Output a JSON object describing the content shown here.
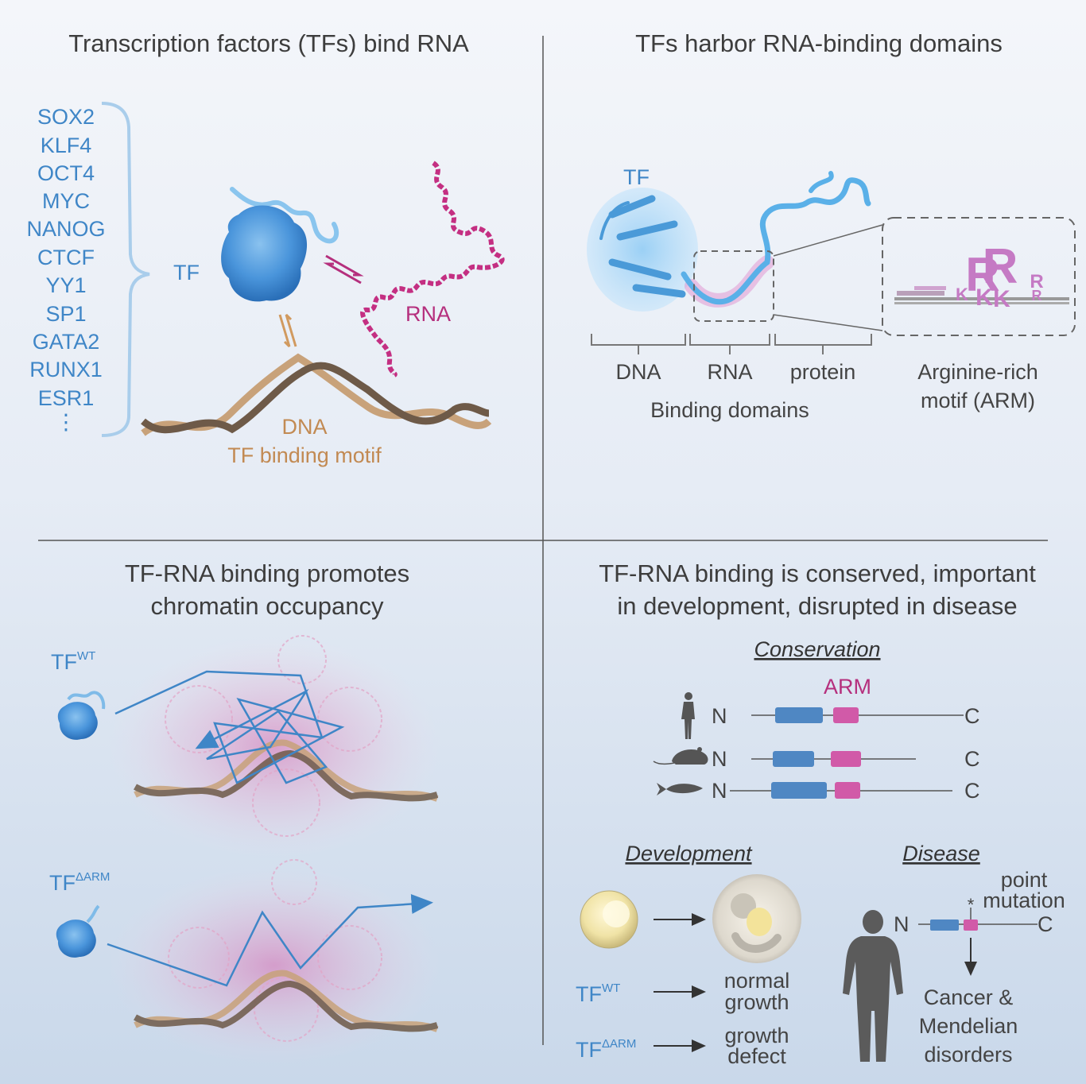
{
  "panels": {
    "top_left": {
      "title": "Transcription factors (TFs) bind RNA",
      "tf_list": [
        "SOX2",
        "KLF4",
        "OCT4",
        "MYC",
        "NANOG",
        "CTCF",
        "YY1",
        "SP1",
        "GATA2",
        "RUNX1",
        "ESR1",
        "⋮"
      ],
      "tf_label": "TF",
      "rna_label": "RNA",
      "dna_label": "DNA",
      "motif_label": "TF binding motif"
    },
    "top_right": {
      "title": "TFs harbor RNA-binding domains",
      "tf_label": "TF",
      "domains": [
        "DNA",
        "RNA",
        "protein"
      ],
      "domains_caption": "Binding domains",
      "arm_caption_line1": "Arginine-rich",
      "arm_caption_line2": "motif (ARM)",
      "logo_letters": [
        "R",
        "R",
        "K",
        "K",
        "K",
        "R",
        "R"
      ]
    },
    "bottom_left": {
      "title_line1": "TF-RNA binding promotes",
      "title_line2": "chromatin occupancy",
      "wt_base": "TF",
      "wt_sup": "WT",
      "arm_base": "TF",
      "arm_sup": "ΔARM"
    },
    "bottom_right": {
      "title_line1": "TF-RNA binding is conserved, important",
      "title_line2": "in development, disrupted in disease",
      "conservation_heading": "Conservation",
      "arm_label": "ARM",
      "n_label": "N",
      "c_label": "C",
      "development_heading": "Development",
      "disease_heading": "Disease",
      "wt_base": "TF",
      "wt_sup": "WT",
      "arm_base": "TF",
      "arm_sup": "ΔARM",
      "normal_line1": "normal",
      "normal_line2": "growth",
      "defect_line1": "growth",
      "defect_line2": "defect",
      "point_line1": "point",
      "point_line2": "mutation",
      "asterisk": "*",
      "disorder_line1": "Cancer &",
      "disorder_line2": "Mendelian",
      "disorder_line3": "disorders"
    }
  },
  "colors": {
    "tf_blue": "#3f86c7",
    "rna_pink": "#b52f7d",
    "dna_orange": "#c28a53",
    "arm_magenta": "#d15aa8",
    "domain_blue": "#4f87c3"
  }
}
